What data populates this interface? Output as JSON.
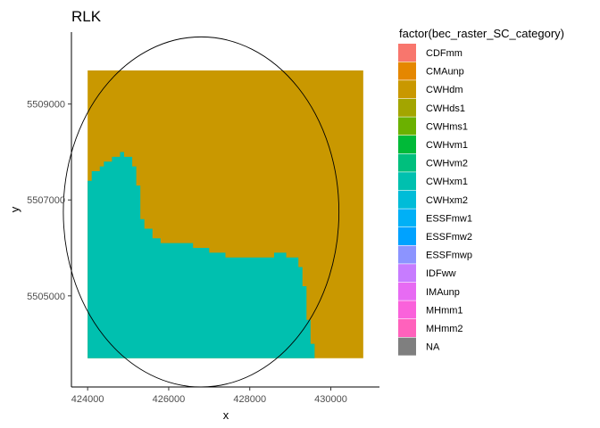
{
  "chart_data": {
    "type": "heatmap",
    "title": "RLK",
    "xlabel": "x",
    "ylabel": "y",
    "xlim": [
      423600,
      431200
    ],
    "ylim": [
      5503100,
      5510500
    ],
    "x_ticks": [
      424000,
      426000,
      428000,
      430000
    ],
    "x_tick_labels": [
      "424000",
      "426000",
      "428000",
      "430000"
    ],
    "y_ticks": [
      5505000,
      5507000,
      5509000
    ],
    "y_tick_labels": [
      "5505000",
      "5507000",
      "5509000"
    ],
    "grid": false,
    "legend_position": "right",
    "legend": {
      "title": "factor(bec_raster_SC_category)",
      "entries": [
        {
          "label": "CDFmm",
          "color": "#F8766D"
        },
        {
          "label": "CMAunp",
          "color": "#E58700"
        },
        {
          "label": "CWHdm",
          "color": "#C99800"
        },
        {
          "label": "CWHds1",
          "color": "#A3A500"
        },
        {
          "label": "CWHms1",
          "color": "#6BB100"
        },
        {
          "label": "CWHvm1",
          "color": "#00BA38"
        },
        {
          "label": "CWHvm2",
          "color": "#00BF7D"
        },
        {
          "label": "CWHxm1",
          "color": "#00C0AF"
        },
        {
          "label": "CWHxm2",
          "color": "#00BCD8"
        },
        {
          "label": "ESSFmw1",
          "color": "#00B0F6"
        },
        {
          "label": "ESSFmw2",
          "color": "#00A2FF"
        },
        {
          "label": "ESSFmwp",
          "color": "#8C94FF"
        },
        {
          "label": "IDFww",
          "color": "#C77CFF"
        },
        {
          "label": "IMAunp",
          "color": "#E76BF3"
        },
        {
          "label": "MHmm1",
          "color": "#FA62DB"
        },
        {
          "label": "MHmm2",
          "color": "#FF62BC"
        },
        {
          "label": "NA",
          "color": "#7F7F7F"
        }
      ]
    },
    "raster": {
      "extent": {
        "xmin": 424000,
        "xmax": 430800,
        "ymin": 5503700,
        "ymax": 5509700
      },
      "background_category": "CWHdm",
      "region_category": "CWHxm1",
      "region_outline": [
        [
          424000,
          5503700
        ],
        [
          429600,
          5503700
        ],
        [
          429600,
          5504000
        ],
        [
          429500,
          5504000
        ],
        [
          429500,
          5504500
        ],
        [
          429400,
          5504500
        ],
        [
          429400,
          5505200
        ],
        [
          429300,
          5505200
        ],
        [
          429300,
          5505600
        ],
        [
          429200,
          5505600
        ],
        [
          429200,
          5505800
        ],
        [
          428900,
          5505800
        ],
        [
          428900,
          5505900
        ],
        [
          428600,
          5505900
        ],
        [
          428600,
          5505800
        ],
        [
          427400,
          5505800
        ],
        [
          427400,
          5505900
        ],
        [
          427000,
          5505900
        ],
        [
          427000,
          5506000
        ],
        [
          426600,
          5506000
        ],
        [
          426600,
          5506100
        ],
        [
          425800,
          5506100
        ],
        [
          425800,
          5506200
        ],
        [
          425600,
          5506200
        ],
        [
          425600,
          5506400
        ],
        [
          425400,
          5506400
        ],
        [
          425400,
          5506600
        ],
        [
          425300,
          5506600
        ],
        [
          425300,
          5507300
        ],
        [
          425200,
          5507300
        ],
        [
          425200,
          5507700
        ],
        [
          425100,
          5507700
        ],
        [
          425100,
          5507900
        ],
        [
          424900,
          5507900
        ],
        [
          424900,
          5508000
        ],
        [
          424800,
          5508000
        ],
        [
          424800,
          5507900
        ],
        [
          424600,
          5507900
        ],
        [
          424600,
          5507800
        ],
        [
          424400,
          5507800
        ],
        [
          424400,
          5507700
        ],
        [
          424300,
          5507700
        ],
        [
          424300,
          5507600
        ],
        [
          424100,
          5507600
        ],
        [
          424100,
          5507400
        ],
        [
          424000,
          5507400
        ]
      ]
    },
    "circle": {
      "cx": 426800,
      "cy": 5506750,
      "rx": 3400,
      "ry": 3650
    }
  }
}
